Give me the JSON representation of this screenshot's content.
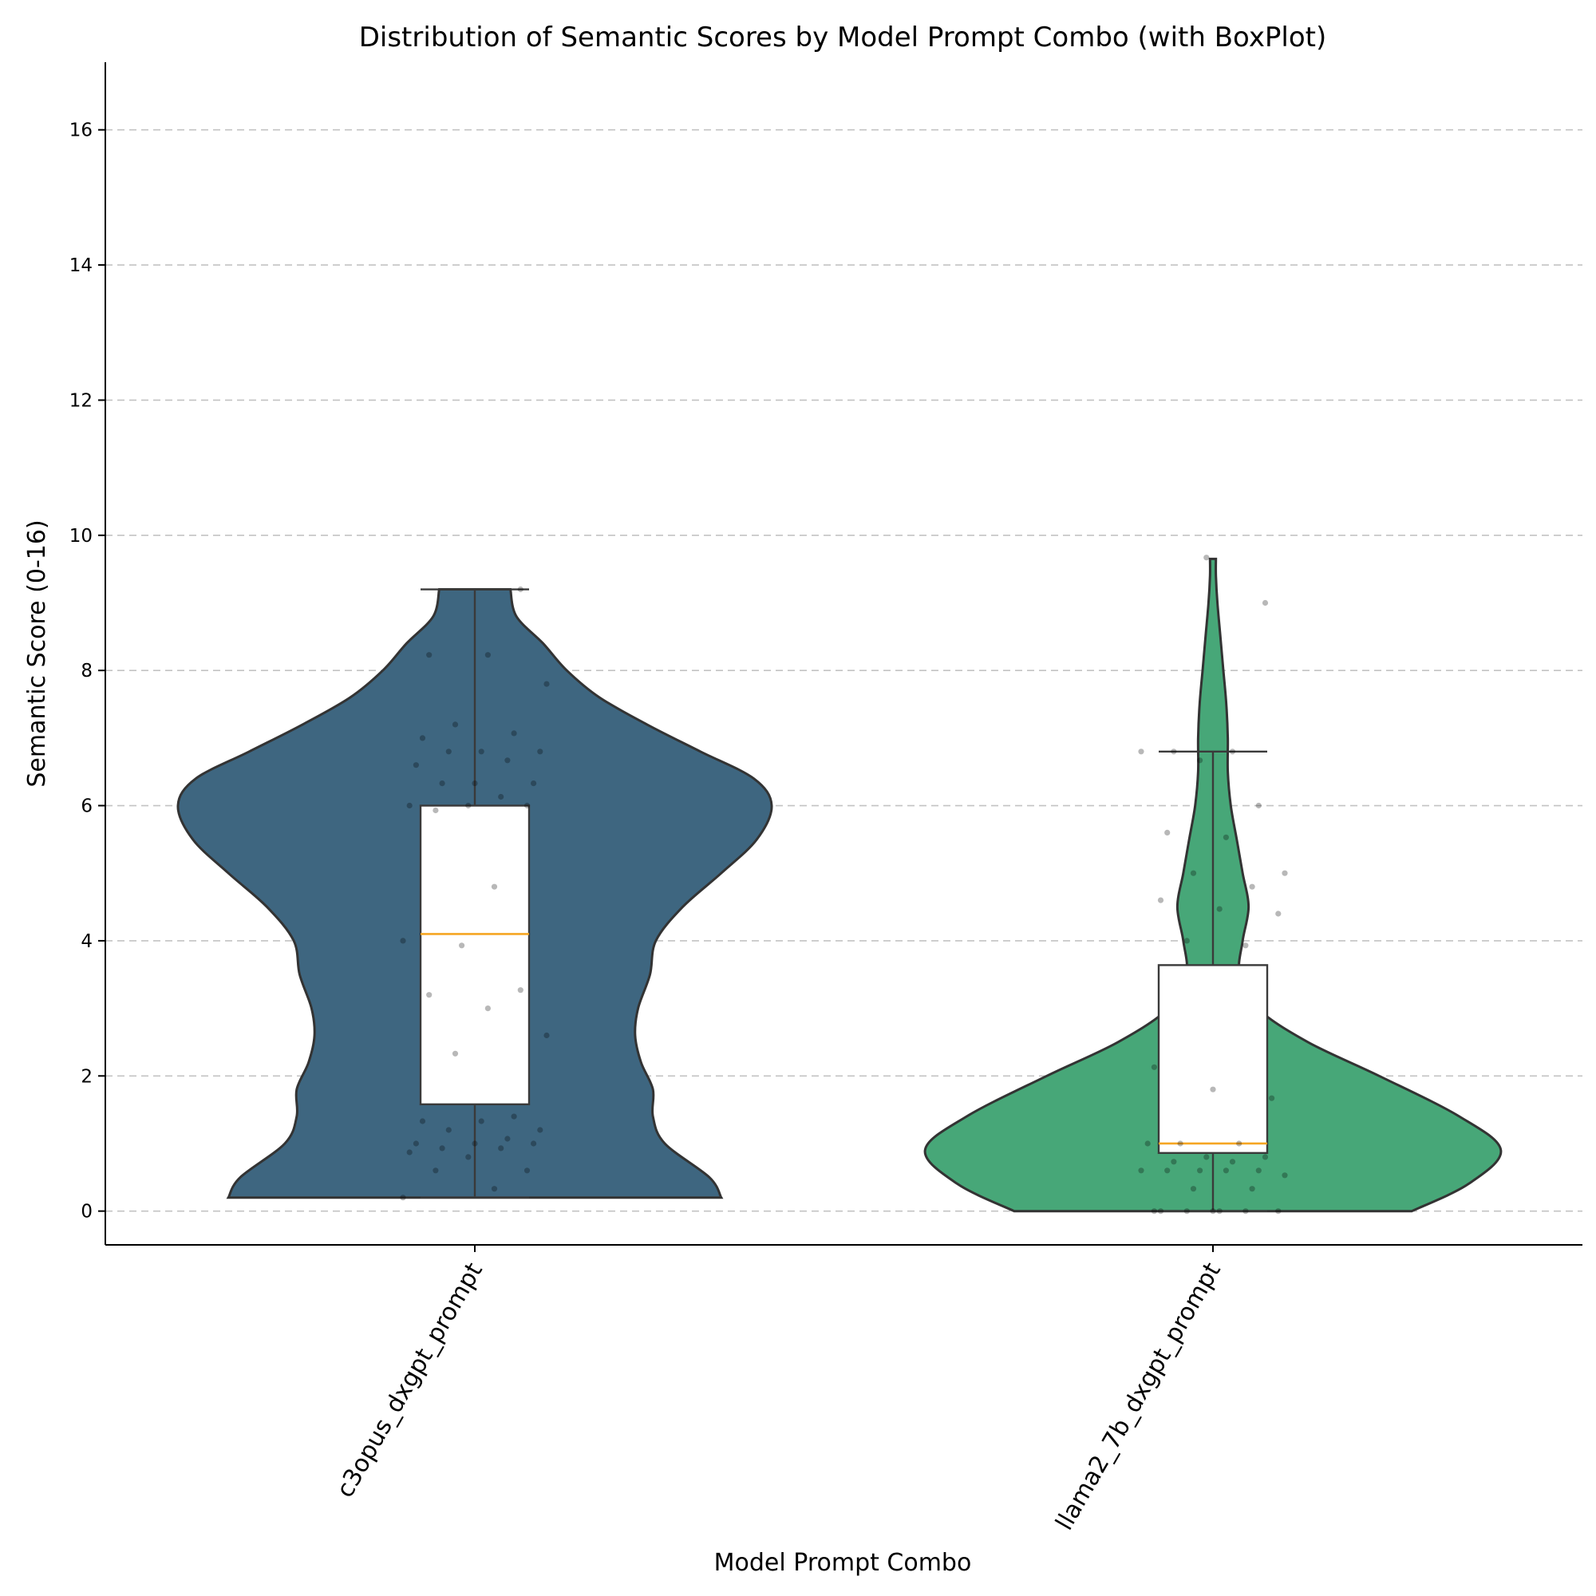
{
  "chart_data": {
    "type": "violin",
    "title": "Distribution of Semantic Scores by Model Prompt Combo (with BoxPlot)",
    "xlabel": "Model Prompt Combo",
    "ylabel": "Semantic Score (0-16)",
    "ylim": [
      -0.5,
      17
    ],
    "yticks": [
      0,
      2,
      4,
      6,
      8,
      10,
      12,
      14,
      16
    ],
    "grid": "y-dashed",
    "categories": [
      "c3opus_dxgpt_prompt",
      "llama2_7b_dxgpt_prompt"
    ],
    "series": [
      {
        "category": "c3opus_dxgpt_prompt",
        "color": "#3e6680",
        "box": {
          "min": 0.2,
          "q1": 1.58,
          "median": 4.1,
          "q3": 6.0,
          "max": 9.2
        },
        "density": [
          [
            0.2,
            0.83
          ],
          [
            0.5,
            0.79
          ],
          [
            1.0,
            0.64
          ],
          [
            1.4,
            0.6
          ],
          [
            1.8,
            0.6
          ],
          [
            2.2,
            0.56
          ],
          [
            2.6,
            0.54
          ],
          [
            3.0,
            0.55
          ],
          [
            3.5,
            0.59
          ],
          [
            4.0,
            0.61
          ],
          [
            4.5,
            0.7
          ],
          [
            5.0,
            0.83
          ],
          [
            5.5,
            0.95
          ],
          [
            6.0,
            1.0
          ],
          [
            6.4,
            0.94
          ],
          [
            6.8,
            0.76
          ],
          [
            7.2,
            0.58
          ],
          [
            7.6,
            0.42
          ],
          [
            8.0,
            0.31
          ],
          [
            8.4,
            0.23
          ],
          [
            8.8,
            0.14
          ],
          [
            9.2,
            0.12
          ]
        ],
        "points": [
          0.2,
          0.33,
          0.6,
          0.6,
          0.8,
          0.87,
          0.93,
          0.93,
          1.0,
          1.0,
          1.0,
          1.07,
          1.2,
          1.2,
          1.33,
          1.33,
          1.4,
          2.33,
          2.6,
          3.0,
          3.2,
          3.27,
          3.93,
          4.0,
          4.8,
          5.93,
          6.0,
          6.0,
          6.0,
          6.13,
          6.33,
          6.33,
          6.33,
          6.6,
          6.67,
          6.8,
          6.8,
          6.8,
          7.0,
          7.07,
          7.2,
          7.8,
          8.23,
          8.23,
          9.2
        ]
      },
      {
        "category": "llama2_7b_dxgpt_prompt",
        "color": "#47a778",
        "box": {
          "min": 0.0,
          "q1": 0.86,
          "median": 1.0,
          "q3": 3.64,
          "max": 6.8
        },
        "density": [
          [
            0.0,
            0.67
          ],
          [
            0.4,
            0.86
          ],
          [
            0.9,
            0.97
          ],
          [
            1.4,
            0.83
          ],
          [
            2.0,
            0.56
          ],
          [
            2.5,
            0.32
          ],
          [
            3.0,
            0.15
          ],
          [
            3.5,
            0.09
          ],
          [
            4.0,
            0.1
          ],
          [
            4.5,
            0.12
          ],
          [
            5.0,
            0.1
          ],
          [
            5.5,
            0.08
          ],
          [
            6.0,
            0.06
          ],
          [
            6.5,
            0.05
          ],
          [
            7.0,
            0.05
          ],
          [
            7.5,
            0.045
          ],
          [
            8.0,
            0.035
          ],
          [
            8.5,
            0.025
          ],
          [
            9.0,
            0.015
          ],
          [
            9.4,
            0.01
          ],
          [
            9.65,
            0.01
          ]
        ],
        "points": [
          0.0,
          0.0,
          0.0,
          0.0,
          0.0,
          0.0,
          0.0,
          0.33,
          0.33,
          0.53,
          0.6,
          0.6,
          0.6,
          0.6,
          0.6,
          0.73,
          0.73,
          0.8,
          0.8,
          1.0,
          1.0,
          1.0,
          1.67,
          1.8,
          2.13,
          3.93,
          4.0,
          4.4,
          4.47,
          4.6,
          4.8,
          5.0,
          5.0,
          5.53,
          5.6,
          6.0,
          6.67,
          6.8,
          6.8,
          6.8,
          9.0,
          9.67
        ]
      }
    ]
  }
}
